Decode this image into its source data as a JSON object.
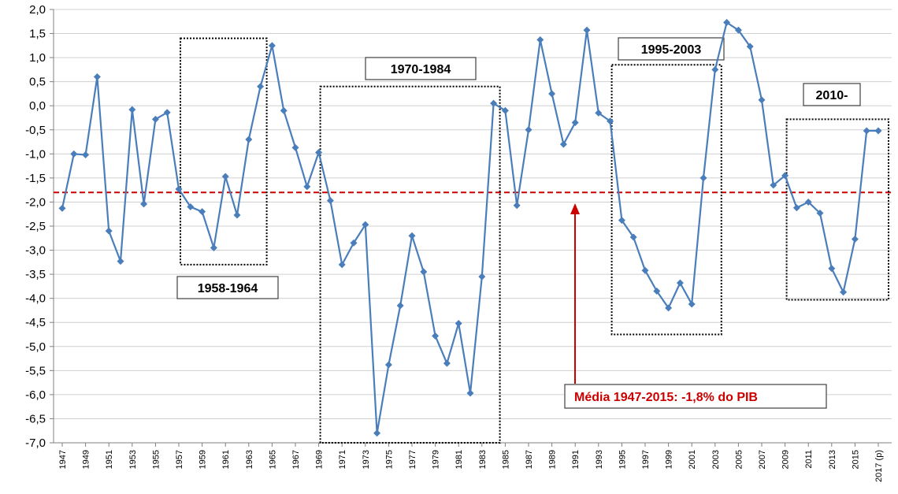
{
  "chart_data": {
    "type": "line",
    "title": "",
    "xlabel": "",
    "ylabel": "",
    "ylim": [
      -7.0,
      2.0
    ],
    "y_tick_step": 0.5,
    "grid": "horizontal",
    "decimal_separator": ",",
    "categories": [
      "1947",
      "1948",
      "1949",
      "1950",
      "1951",
      "1952",
      "1953",
      "1954",
      "1955",
      "1956",
      "1957",
      "1958",
      "1959",
      "1960",
      "1961",
      "1962",
      "1963",
      "1964",
      "1965",
      "1966",
      "1967",
      "1968",
      "1969",
      "1970",
      "1971",
      "1972",
      "1973",
      "1974",
      "1975",
      "1976",
      "1977",
      "1978",
      "1979",
      "1980",
      "1981",
      "1982",
      "1983",
      "1984",
      "1985",
      "1986",
      "1987",
      "1988",
      "1989",
      "1990",
      "1991",
      "1992",
      "1993",
      "1994",
      "1995",
      "1996",
      "1997",
      "1998",
      "1999",
      "2000",
      "2001",
      "2002",
      "2003",
      "2004",
      "2005",
      "2006",
      "2007",
      "2008",
      "2009",
      "2010",
      "2011",
      "2012",
      "2013",
      "2014",
      "2015",
      "2016",
      "2017 (p)"
    ],
    "x_tick_labels": [
      "1947",
      "1949",
      "1951",
      "1953",
      "1955",
      "1957",
      "1959",
      "1961",
      "1963",
      "1965",
      "1967",
      "1969",
      "1971",
      "1973",
      "1975",
      "1977",
      "1979",
      "1981",
      "1983",
      "1985",
      "1987",
      "1989",
      "1991",
      "1993",
      "1995",
      "1997",
      "1999",
      "2001",
      "2003",
      "2005",
      "2007",
      "2009",
      "2011",
      "2013",
      "2015",
      "2017 (p)"
    ],
    "series": [
      {
        "color": "#4a7ebb",
        "marker": "diamond",
        "values": [
          -2.13,
          -1.0,
          -1.02,
          0.6,
          -2.6,
          -3.23,
          -0.08,
          -2.04,
          -0.28,
          -0.14,
          -1.73,
          -2.1,
          -2.2,
          -2.95,
          -1.47,
          -2.27,
          -0.7,
          0.4,
          1.25,
          -0.1,
          -0.87,
          -1.68,
          -0.97,
          -1.97,
          -3.3,
          -2.85,
          -2.47,
          -6.8,
          -5.38,
          -4.15,
          -2.7,
          -3.45,
          -4.78,
          -5.35,
          -4.52,
          -5.97,
          -3.55,
          0.05,
          -0.1,
          -2.07,
          -0.5,
          1.37,
          0.25,
          -0.8,
          -0.35,
          1.57,
          -0.15,
          -0.32,
          -2.38,
          -2.73,
          -3.42,
          -3.85,
          -4.2,
          -3.68,
          -4.12,
          -1.5,
          0.75,
          1.73,
          1.57,
          1.23,
          0.12,
          -1.65,
          -1.45,
          -2.12,
          -2.0,
          -2.23,
          -3.38,
          -3.87,
          -2.77,
          -0.52,
          -0.52
        ]
      }
    ],
    "reference_line": {
      "value": -1.8,
      "color": "#cc0000",
      "label": "Média 1947-2015: -1,8% do PIB"
    },
    "highlight_periods": [
      {
        "label": "1958-1964",
        "from": "1957",
        "to": "1964",
        "y_top": 1.4,
        "y_bottom": -3.3
      },
      {
        "label": "1970-1984",
        "from": "1969",
        "to": "1984",
        "y_top": 0.4,
        "y_bottom": -7.0
      },
      {
        "label": "1995-2003",
        "from": "1994",
        "to": "2003",
        "y_top": 0.85,
        "y_bottom": -4.75
      },
      {
        "label": "2010-",
        "from": "2009",
        "to": "2017 (p)",
        "y_top": -0.28,
        "y_bottom": -4.03
      }
    ]
  }
}
